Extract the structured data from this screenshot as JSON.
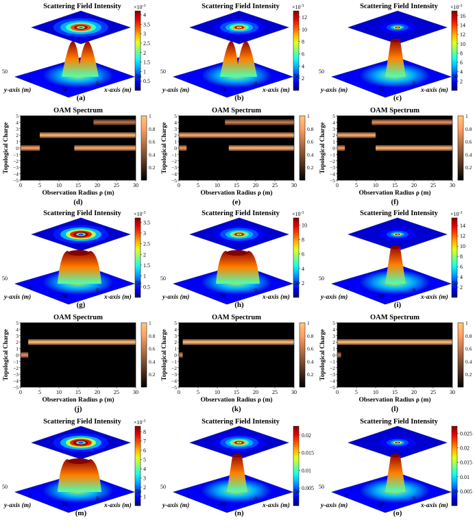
{
  "figure": {
    "panels": [
      {
        "id": "a",
        "label": "(a)",
        "kind": "surface",
        "title": "Scattering Field Intensity",
        "exponent": "×10",
        "exponent_power": "-3",
        "colorbar_ticks": [
          "4",
          "3.5",
          "3",
          "2.5",
          "2",
          "1.5",
          "1",
          "0.5"
        ],
        "cmax": 4.2,
        "top_rings": "donut2",
        "surface": "twinpeak",
        "y_ticks": [
          "50",
          "0",
          "−50"
        ],
        "x_ticks": [
          "0",
          "50"
        ],
        "ylabel": "y-axis (m)",
        "xlabel": "x-axis (m)"
      },
      {
        "id": "b",
        "label": "(b)",
        "kind": "surface",
        "title": "Scattering Field Intensity",
        "exponent": "×10",
        "exponent_power": "-3",
        "colorbar_ticks": [
          "12",
          "10",
          "8",
          "6",
          "4",
          "2"
        ],
        "cmax": 13,
        "top_rings": "rings",
        "surface": "twinpeak",
        "y_ticks": [
          "50",
          "0",
          "−50"
        ],
        "x_ticks": [
          "0",
          "50"
        ],
        "ylabel": "y-axis (m)",
        "xlabel": "x-axis (m)"
      },
      {
        "id": "c",
        "label": "(c)",
        "kind": "surface",
        "title": "Scattering Field Intensity",
        "exponent": "×10",
        "exponent_power": "-3",
        "colorbar_ticks": [
          "16",
          "14",
          "12",
          "10",
          "8",
          "6",
          "4",
          "2"
        ],
        "cmax": 17,
        "top_rings": "small",
        "surface": "tall",
        "y_ticks": [
          "50",
          "0",
          "−50"
        ],
        "x_ticks": [
          "0",
          "50"
        ],
        "ylabel": "y-axis (m)",
        "xlabel": "x-axis (m)"
      },
      {
        "id": "d",
        "label": "(d)",
        "kind": "oam",
        "title": "OAM Spectrum",
        "ylabel": "Topological Charge",
        "xlabel": "Observation Radius ρ (m)",
        "y_ticks": [
          "5",
          "4",
          "3",
          "2",
          "1",
          "0",
          "−1",
          "−2",
          "−3",
          "−4",
          "−5"
        ],
        "x_ticks": [
          "0",
          "5",
          "10",
          "15",
          "20",
          "25",
          "30"
        ],
        "colorbar_ticks": [
          "1",
          "0.8",
          "0.6",
          "0.4",
          "0.2"
        ],
        "bands": [
          {
            "charge": 4,
            "from": 19,
            "to": 30,
            "level": 0.6
          },
          {
            "charge": 2,
            "from": 5,
            "to": 30,
            "level": 0.95
          },
          {
            "charge": 0,
            "from": 0,
            "to": 5,
            "level": 0.85
          },
          {
            "charge": 0,
            "from": 14,
            "to": 30,
            "level": 0.9
          }
        ]
      },
      {
        "id": "e",
        "label": "(e)",
        "kind": "oam",
        "title": "OAM Spectrum",
        "ylabel": "Topological Charge",
        "xlabel": "Observation Radius ρ (m)",
        "y_ticks": [
          "5",
          "4",
          "3",
          "2",
          "1",
          "0",
          "−1",
          "−2",
          "−3",
          "−4",
          "−5"
        ],
        "x_ticks": [
          "0",
          "5",
          "10",
          "15",
          "20",
          "25",
          "30"
        ],
        "colorbar_ticks": [
          "1",
          "0.8",
          "0.6",
          "0.4",
          "0.2"
        ],
        "bands": [
          {
            "charge": 4,
            "from": 12,
            "to": 30,
            "level": 0.65
          },
          {
            "charge": 2,
            "from": 0,
            "to": 30,
            "level": 0.9
          },
          {
            "charge": 0,
            "from": 0,
            "to": 2,
            "level": 0.8
          },
          {
            "charge": 0,
            "from": 13,
            "to": 30,
            "level": 0.95
          }
        ]
      },
      {
        "id": "f",
        "label": "(f)",
        "kind": "oam",
        "title": "OAM Spectrum",
        "ylabel": "Topological Charge",
        "xlabel": "Observation Radius ρ (m)",
        "y_ticks": [
          "5",
          "4",
          "3",
          "2",
          "1",
          "0",
          "−1",
          "−2",
          "−3",
          "−4",
          "−5"
        ],
        "x_ticks": [
          "0",
          "5",
          "10",
          "15",
          "20",
          "25",
          "30"
        ],
        "colorbar_ticks": [
          "1",
          "0.8",
          "0.6",
          "0.4",
          "0.2"
        ],
        "bands": [
          {
            "charge": 4,
            "from": 9,
            "to": 30,
            "level": 0.75
          },
          {
            "charge": 2,
            "from": 0,
            "to": 10,
            "level": 0.9
          },
          {
            "charge": 0,
            "from": 0,
            "to": 2,
            "level": 0.8
          },
          {
            "charge": 0,
            "from": 10,
            "to": 30,
            "level": 0.95
          }
        ]
      },
      {
        "id": "g",
        "label": "(g)",
        "kind": "surface",
        "title": "Scattering Field Intensity",
        "exponent": "×10",
        "exponent_power": "-3",
        "colorbar_ticks": [
          "3.5",
          "3",
          "2.5",
          "2",
          "1.5",
          "1",
          "0.5"
        ],
        "cmax": 3.7,
        "top_rings": "donut",
        "surface": "crater",
        "y_ticks": [
          "50",
          "0",
          "−50"
        ],
        "x_ticks": [
          "0",
          "50"
        ],
        "ylabel": "y-axis (m)",
        "xlabel": "x-axis (m)"
      },
      {
        "id": "h",
        "label": "(h)",
        "kind": "surface",
        "title": "Scattering Field Intensity",
        "exponent": "×10",
        "exponent_power": "-3",
        "colorbar_ticks": [
          "10",
          "8",
          "6",
          "4",
          "2"
        ],
        "cmax": 11,
        "top_rings": "rings",
        "surface": "crater",
        "y_ticks": [
          "50",
          "0",
          "−50"
        ],
        "x_ticks": [
          "0",
          "50"
        ],
        "ylabel": "y-axis (m)",
        "xlabel": "x-axis (m)"
      },
      {
        "id": "i",
        "label": "(i)",
        "kind": "surface",
        "title": "Scattering Field Intensity",
        "exponent": "×10",
        "exponent_power": "-3",
        "colorbar_ticks": [
          "14",
          "12",
          "10",
          "8",
          "6",
          "4",
          "2"
        ],
        "cmax": 15.5,
        "top_rings": "small",
        "surface": "tall",
        "y_ticks": [
          "50",
          "0",
          "−50"
        ],
        "x_ticks": [
          "0",
          "50"
        ],
        "ylabel": "y-axis (m)",
        "xlabel": "x-axis (m)"
      },
      {
        "id": "j",
        "label": "(j)",
        "kind": "oam",
        "title": "OAM Spectrum",
        "ylabel": "Topological Charge",
        "xlabel": "Observation Radius ρ (m)",
        "y_ticks": [
          "5",
          "4",
          "3",
          "2",
          "1",
          "0",
          "−1",
          "−2",
          "−3",
          "−4",
          "−5"
        ],
        "x_ticks": [
          "0",
          "5",
          "10",
          "15",
          "20",
          "25",
          "30"
        ],
        "colorbar_ticks": [
          "1",
          "0.8",
          "0.6",
          "0.4",
          "0.2"
        ],
        "bands": [
          {
            "charge": 2,
            "from": 2,
            "to": 30,
            "level": 1.0
          },
          {
            "charge": 0,
            "from": 0,
            "to": 2,
            "level": 0.75
          }
        ]
      },
      {
        "id": "k",
        "label": "(k)",
        "kind": "oam",
        "title": "OAM Spectrum",
        "ylabel": "Topological Charge",
        "xlabel": "Observation Radius ρ (m)",
        "y_ticks": [
          "5",
          "4",
          "3",
          "2",
          "1",
          "0",
          "−1",
          "−2",
          "−3",
          "−4",
          "−5"
        ],
        "x_ticks": [
          "0",
          "5",
          "10",
          "15",
          "20",
          "25",
          "30"
        ],
        "colorbar_ticks": [
          "1",
          "0.8",
          "0.6",
          "0.4",
          "0.2"
        ],
        "bands": [
          {
            "charge": 2,
            "from": 1,
            "to": 30,
            "level": 1.0
          },
          {
            "charge": 0,
            "from": 0,
            "to": 1,
            "level": 0.7
          }
        ]
      },
      {
        "id": "l",
        "label": "(l)",
        "kind": "oam",
        "title": "OAM Spectrum",
        "ylabel": "Topological Charge",
        "xlabel": "Observation Radius ρ (m)",
        "y_ticks": [
          "5",
          "4",
          "3",
          "2",
          "1",
          "0",
          "−1",
          "−2",
          "−3",
          "−4",
          "−5"
        ],
        "x_ticks": [
          "0",
          "5",
          "10",
          "15",
          "20",
          "25",
          "30"
        ],
        "colorbar_ticks": [
          "1",
          "0.8",
          "0.6",
          "0.4",
          "0.2"
        ],
        "bands": [
          {
            "charge": 2,
            "from": 0,
            "to": 30,
            "level": 1.0
          },
          {
            "charge": 0,
            "from": 0,
            "to": 1,
            "level": 0.6
          }
        ]
      },
      {
        "id": "m",
        "label": "(m)",
        "kind": "surface",
        "title": "Scattering Field Intensity",
        "exponent": "×10",
        "exponent_power": "-3",
        "colorbar_ticks": [
          "8",
          "7",
          "6",
          "5",
          "4",
          "3",
          "2",
          "1"
        ],
        "cmax": 8.6,
        "top_rings": "donut",
        "surface": "crater",
        "y_ticks": [
          "50",
          "0",
          "−50"
        ],
        "x_ticks": [
          "0",
          "50"
        ],
        "ylabel": "y-axis (m)",
        "xlabel": "x-axis (m)"
      },
      {
        "id": "n",
        "label": "(n)",
        "kind": "surface",
        "title": "Scattering Field Intensity",
        "exponent": "",
        "exponent_power": "",
        "colorbar_ticks": [
          "0.02",
          "0.015",
          "0.01",
          "0.005"
        ],
        "cmax": 0.0225,
        "top_rings": "rings",
        "surface": "tall",
        "y_ticks": [
          "50",
          "0",
          "−50"
        ],
        "x_ticks": [
          "0",
          "50"
        ],
        "ylabel": "y-axis (m)",
        "xlabel": "x-axis (m)"
      },
      {
        "id": "o",
        "label": "(o)",
        "kind": "surface",
        "title": "Scattering Field Intensity",
        "exponent": "",
        "exponent_power": "",
        "colorbar_ticks": [
          "0.025",
          "0.02",
          "0.015",
          "0.01",
          "0.005"
        ],
        "cmax": 0.0275,
        "top_rings": "small",
        "surface": "tall",
        "y_ticks": [
          "50",
          "0",
          "−50"
        ],
        "x_ticks": [
          "0",
          "50"
        ],
        "ylabel": "y-axis (m)",
        "xlabel": "x-axis (m)"
      }
    ]
  }
}
